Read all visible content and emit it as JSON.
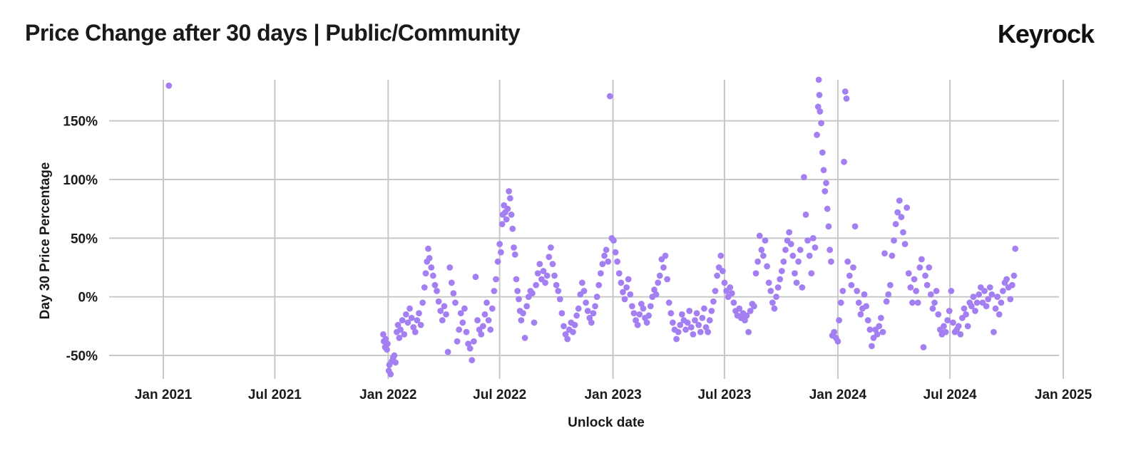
{
  "header": {
    "title": "Price Change after 30 days | Public/Community",
    "logo": "Keyrock"
  },
  "chart_data": {
    "type": "scatter",
    "title": "Price Change after 30 days | Public/Community",
    "xlabel": "Unlock date",
    "ylabel": "Day 30 Price Percentage",
    "point_color": "#a47ff2",
    "x_ticks": [
      "Jan 2021",
      "Jul 2021",
      "Jan 2022",
      "Jul 2022",
      "Jan 2023",
      "Jul 2023",
      "Jan 2024",
      "Jul 2024",
      "Jan 2025"
    ],
    "x_tick_dates": [
      "2021-01-01",
      "2021-07-01",
      "2022-01-01",
      "2022-07-01",
      "2023-01-01",
      "2023-07-01",
      "2024-01-01",
      "2024-07-01",
      "2025-01-01"
    ],
    "xlim": [
      "2020-10-05",
      "2024-12-25"
    ],
    "y_ticks": [
      -50,
      0,
      50,
      100,
      150
    ],
    "y_tick_labels": [
      "-50%",
      "0%",
      "50%",
      "100%",
      "150%"
    ],
    "ylim": [
      -70,
      185
    ],
    "grid": true,
    "points": [
      [
        "2021-01-10",
        180
      ],
      [
        "2021-12-24",
        -32
      ],
      [
        "2021-12-25",
        -38
      ],
      [
        "2021-12-27",
        -43
      ],
      [
        "2021-12-28",
        -36
      ],
      [
        "2021-12-30",
        -45
      ],
      [
        "2021-12-31",
        -40
      ],
      [
        "2022-01-02",
        -63
      ],
      [
        "2022-01-03",
        -58
      ],
      [
        "2022-01-05",
        -66
      ],
      [
        "2022-01-07",
        -55
      ],
      [
        "2022-01-09",
        -52
      ],
      [
        "2022-01-11",
        -50
      ],
      [
        "2022-01-13",
        -56
      ],
      [
        "2022-01-15",
        -30
      ],
      [
        "2022-01-17",
        -24
      ],
      [
        "2022-01-19",
        -35
      ],
      [
        "2022-01-21",
        -28
      ],
      [
        "2022-01-24",
        -20
      ],
      [
        "2022-01-27",
        -32
      ],
      [
        "2022-01-30",
        -15
      ],
      [
        "2022-02-02",
        -22
      ],
      [
        "2022-02-05",
        -10
      ],
      [
        "2022-02-08",
        -18
      ],
      [
        "2022-02-11",
        -26
      ],
      [
        "2022-02-14",
        -30
      ],
      [
        "2022-02-17",
        -20
      ],
      [
        "2022-02-20",
        -14
      ],
      [
        "2022-02-23",
        -24
      ],
      [
        "2022-02-26",
        -5
      ],
      [
        "2022-03-01",
        8
      ],
      [
        "2022-03-03",
        20
      ],
      [
        "2022-03-05",
        30
      ],
      [
        "2022-03-07",
        41
      ],
      [
        "2022-03-09",
        33
      ],
      [
        "2022-03-12",
        25
      ],
      [
        "2022-03-15",
        18
      ],
      [
        "2022-03-18",
        10
      ],
      [
        "2022-03-21",
        5
      ],
      [
        "2022-03-24",
        -4
      ],
      [
        "2022-03-27",
        -12
      ],
      [
        "2022-03-30",
        -20
      ],
      [
        "2022-04-02",
        -8
      ],
      [
        "2022-04-05",
        -15
      ],
      [
        "2022-04-08",
        -47
      ],
      [
        "2022-04-11",
        25
      ],
      [
        "2022-04-14",
        12
      ],
      [
        "2022-04-17",
        3
      ],
      [
        "2022-04-20",
        -5
      ],
      [
        "2022-04-23",
        -38
      ],
      [
        "2022-04-26",
        -28
      ],
      [
        "2022-04-29",
        -14
      ],
      [
        "2022-05-02",
        -22
      ],
      [
        "2022-05-05",
        -10
      ],
      [
        "2022-05-08",
        -30
      ],
      [
        "2022-05-11",
        -40
      ],
      [
        "2022-05-14",
        -44
      ],
      [
        "2022-05-17",
        -54
      ],
      [
        "2022-05-20",
        -38
      ],
      [
        "2022-05-23",
        17
      ],
      [
        "2022-05-26",
        -20
      ],
      [
        "2022-05-29",
        -28
      ],
      [
        "2022-06-01",
        -32
      ],
      [
        "2022-06-04",
        -25
      ],
      [
        "2022-06-07",
        -15
      ],
      [
        "2022-06-10",
        -5
      ],
      [
        "2022-06-13",
        -20
      ],
      [
        "2022-06-16",
        -28
      ],
      [
        "2022-06-19",
        -10
      ],
      [
        "2022-06-22",
        5
      ],
      [
        "2022-06-25",
        15
      ],
      [
        "2022-06-28",
        30
      ],
      [
        "2022-07-01",
        45
      ],
      [
        "2022-07-03",
        38
      ],
      [
        "2022-07-05",
        62
      ],
      [
        "2022-07-06",
        70
      ],
      [
        "2022-07-08",
        78
      ],
      [
        "2022-07-10",
        72
      ],
      [
        "2022-07-12",
        66
      ],
      [
        "2022-07-14",
        75
      ],
      [
        "2022-07-16",
        90
      ],
      [
        "2022-07-18",
        84
      ],
      [
        "2022-07-20",
        70
      ],
      [
        "2022-07-22",
        58
      ],
      [
        "2022-07-24",
        42
      ],
      [
        "2022-07-26",
        36
      ],
      [
        "2022-07-28",
        15
      ],
      [
        "2022-07-30",
        5
      ],
      [
        "2022-08-01",
        -2
      ],
      [
        "2022-08-03",
        -12
      ],
      [
        "2022-08-05",
        -20
      ],
      [
        "2022-08-08",
        -14
      ],
      [
        "2022-08-11",
        -35
      ],
      [
        "2022-08-14",
        -8
      ],
      [
        "2022-08-17",
        0
      ],
      [
        "2022-08-20",
        5
      ],
      [
        "2022-08-23",
        3
      ],
      [
        "2022-08-26",
        -22
      ],
      [
        "2022-08-29",
        10
      ],
      [
        "2022-09-01",
        20
      ],
      [
        "2022-09-04",
        28
      ],
      [
        "2022-09-07",
        15
      ],
      [
        "2022-09-10",
        22
      ],
      [
        "2022-09-13",
        12
      ],
      [
        "2022-09-16",
        18
      ],
      [
        "2022-09-19",
        34
      ],
      [
        "2022-09-22",
        42
      ],
      [
        "2022-09-25",
        28
      ],
      [
        "2022-09-28",
        18
      ],
      [
        "2022-10-01",
        10
      ],
      [
        "2022-10-04",
        5
      ],
      [
        "2022-10-07",
        -2
      ],
      [
        "2022-10-10",
        -14
      ],
      [
        "2022-10-13",
        -25
      ],
      [
        "2022-10-16",
        -32
      ],
      [
        "2022-10-19",
        -36
      ],
      [
        "2022-10-22",
        -28
      ],
      [
        "2022-10-25",
        -22
      ],
      [
        "2022-10-28",
        -30
      ],
      [
        "2022-10-31",
        -24
      ],
      [
        "2022-11-03",
        -16
      ],
      [
        "2022-11-06",
        -10
      ],
      [
        "2022-11-09",
        2
      ],
      [
        "2022-11-12",
        12
      ],
      [
        "2022-11-15",
        5
      ],
      [
        "2022-11-18",
        -5
      ],
      [
        "2022-11-21",
        -12
      ],
      [
        "2022-11-24",
        -18
      ],
      [
        "2022-11-27",
        -22
      ],
      [
        "2022-11-30",
        -14
      ],
      [
        "2022-12-03",
        -8
      ],
      [
        "2022-12-06",
        0
      ],
      [
        "2022-12-09",
        10
      ],
      [
        "2022-12-12",
        20
      ],
      [
        "2022-12-15",
        28
      ],
      [
        "2022-12-18",
        35
      ],
      [
        "2022-12-21",
        40
      ],
      [
        "2022-12-24",
        30
      ],
      [
        "2022-12-27",
        171
      ],
      [
        "2022-12-30",
        50
      ],
      [
        "2023-01-02",
        48
      ],
      [
        "2023-01-05",
        38
      ],
      [
        "2023-01-08",
        30
      ],
      [
        "2023-01-11",
        20
      ],
      [
        "2023-01-14",
        12
      ],
      [
        "2023-01-17",
        4
      ],
      [
        "2023-01-20",
        -2
      ],
      [
        "2023-01-23",
        8
      ],
      [
        "2023-01-26",
        15
      ],
      [
        "2023-01-29",
        2
      ],
      [
        "2023-02-01",
        -8
      ],
      [
        "2023-02-04",
        -14
      ],
      [
        "2023-02-07",
        -20
      ],
      [
        "2023-02-10",
        -24
      ],
      [
        "2023-02-13",
        -15
      ],
      [
        "2023-02-16",
        -6
      ],
      [
        "2023-02-19",
        -10
      ],
      [
        "2023-02-22",
        -18
      ],
      [
        "2023-02-25",
        -22
      ],
      [
        "2023-02-28",
        -16
      ],
      [
        "2023-03-03",
        -8
      ],
      [
        "2023-03-06",
        0
      ],
      [
        "2023-03-09",
        6
      ],
      [
        "2023-03-12",
        2
      ],
      [
        "2023-03-15",
        12
      ],
      [
        "2023-03-18",
        18
      ],
      [
        "2023-03-21",
        32
      ],
      [
        "2023-03-24",
        25
      ],
      [
        "2023-03-27",
        35
      ],
      [
        "2023-03-30",
        15
      ],
      [
        "2023-04-02",
        -5
      ],
      [
        "2023-04-05",
        -14
      ],
      [
        "2023-04-08",
        -22
      ],
      [
        "2023-04-11",
        -28
      ],
      [
        "2023-04-14",
        -36
      ],
      [
        "2023-04-17",
        -30
      ],
      [
        "2023-04-20",
        -24
      ],
      [
        "2023-04-23",
        -15
      ],
      [
        "2023-04-26",
        -20
      ],
      [
        "2023-04-29",
        -28
      ],
      [
        "2023-05-02",
        -22
      ],
      [
        "2023-05-05",
        -12
      ],
      [
        "2023-05-08",
        -26
      ],
      [
        "2023-05-11",
        -32
      ],
      [
        "2023-05-14",
        -20
      ],
      [
        "2023-05-17",
        -14
      ],
      [
        "2023-05-20",
        -24
      ],
      [
        "2023-05-23",
        -30
      ],
      [
        "2023-05-26",
        -18
      ],
      [
        "2023-05-29",
        -10
      ],
      [
        "2023-06-01",
        -26
      ],
      [
        "2023-06-04",
        -30
      ],
      [
        "2023-06-07",
        -20
      ],
      [
        "2023-06-10",
        -12
      ],
      [
        "2023-06-13",
        -4
      ],
      [
        "2023-06-16",
        5
      ],
      [
        "2023-06-19",
        18
      ],
      [
        "2023-06-22",
        25
      ],
      [
        "2023-06-25",
        35
      ],
      [
        "2023-06-28",
        22
      ],
      [
        "2023-07-01",
        12
      ],
      [
        "2023-07-04",
        5
      ],
      [
        "2023-07-07",
        0
      ],
      [
        "2023-07-10",
        8
      ],
      [
        "2023-07-13",
        3
      ],
      [
        "2023-07-16",
        -5
      ],
      [
        "2023-07-19",
        -12
      ],
      [
        "2023-07-22",
        -16
      ],
      [
        "2023-07-25",
        -10
      ],
      [
        "2023-07-28",
        -18
      ],
      [
        "2023-07-31",
        -14
      ],
      [
        "2023-08-03",
        -20
      ],
      [
        "2023-08-06",
        -16
      ],
      [
        "2023-08-09",
        -30
      ],
      [
        "2023-08-12",
        -12
      ],
      [
        "2023-08-15",
        -6
      ],
      [
        "2023-08-18",
        -8
      ],
      [
        "2023-08-21",
        20
      ],
      [
        "2023-08-24",
        30
      ],
      [
        "2023-08-27",
        52
      ],
      [
        "2023-08-30",
        40
      ],
      [
        "2023-09-02",
        35
      ],
      [
        "2023-09-05",
        48
      ],
      [
        "2023-09-08",
        26
      ],
      [
        "2023-09-11",
        12
      ],
      [
        "2023-09-14",
        5
      ],
      [
        "2023-09-17",
        -5
      ],
      [
        "2023-09-20",
        -10
      ],
      [
        "2023-09-23",
        0
      ],
      [
        "2023-09-26",
        8
      ],
      [
        "2023-09-29",
        15
      ],
      [
        "2023-10-02",
        22
      ],
      [
        "2023-10-05",
        30
      ],
      [
        "2023-10-08",
        40
      ],
      [
        "2023-10-11",
        48
      ],
      [
        "2023-10-14",
        55
      ],
      [
        "2023-10-17",
        45
      ],
      [
        "2023-10-20",
        35
      ],
      [
        "2023-10-23",
        20
      ],
      [
        "2023-10-26",
        12
      ],
      [
        "2023-10-29",
        30
      ],
      [
        "2023-11-01",
        40
      ],
      [
        "2023-11-04",
        8
      ],
      [
        "2023-11-07",
        102
      ],
      [
        "2023-11-10",
        70
      ],
      [
        "2023-11-13",
        48
      ],
      [
        "2023-11-16",
        35
      ],
      [
        "2023-11-19",
        20
      ],
      [
        "2023-11-22",
        50
      ],
      [
        "2023-11-25",
        42
      ],
      [
        "2023-11-28",
        138
      ],
      [
        "2023-11-30",
        162
      ],
      [
        "2023-12-01",
        185
      ],
      [
        "2023-12-02",
        172
      ],
      [
        "2023-12-03",
        158
      ],
      [
        "2023-12-05",
        148
      ],
      [
        "2023-12-07",
        123
      ],
      [
        "2023-12-09",
        108
      ],
      [
        "2023-12-11",
        90
      ],
      [
        "2023-12-13",
        97
      ],
      [
        "2023-12-15",
        75
      ],
      [
        "2023-12-17",
        60
      ],
      [
        "2023-12-19",
        40
      ],
      [
        "2023-12-21",
        30
      ],
      [
        "2023-12-23",
        -33
      ],
      [
        "2023-12-26",
        -30
      ],
      [
        "2023-12-29",
        -35
      ],
      [
        "2024-01-01",
        -38
      ],
      [
        "2024-01-03",
        -20
      ],
      [
        "2024-01-06",
        -5
      ],
      [
        "2024-01-09",
        5
      ],
      [
        "2024-01-11",
        115
      ],
      [
        "2024-01-13",
        175
      ],
      [
        "2024-01-15",
        169
      ],
      [
        "2024-01-17",
        30
      ],
      [
        "2024-01-20",
        18
      ],
      [
        "2024-01-23",
        10
      ],
      [
        "2024-01-26",
        25
      ],
      [
        "2024-01-29",
        60
      ],
      [
        "2024-02-01",
        5
      ],
      [
        "2024-02-04",
        -5
      ],
      [
        "2024-02-07",
        -15
      ],
      [
        "2024-02-10",
        -10
      ],
      [
        "2024-02-13",
        2
      ],
      [
        "2024-02-16",
        -8
      ],
      [
        "2024-02-19",
        -20
      ],
      [
        "2024-02-22",
        -28
      ],
      [
        "2024-02-25",
        -42
      ],
      [
        "2024-02-28",
        -35
      ],
      [
        "2024-03-02",
        -28
      ],
      [
        "2024-03-05",
        -32
      ],
      [
        "2024-03-08",
        -25
      ],
      [
        "2024-03-11",
        -18
      ],
      [
        "2024-03-14",
        -30
      ],
      [
        "2024-03-17",
        37
      ],
      [
        "2024-03-20",
        -4
      ],
      [
        "2024-03-23",
        2
      ],
      [
        "2024-03-26",
        10
      ],
      [
        "2024-03-29",
        35
      ],
      [
        "2024-04-01",
        48
      ],
      [
        "2024-04-04",
        62
      ],
      [
        "2024-04-07",
        72
      ],
      [
        "2024-04-10",
        82
      ],
      [
        "2024-04-13",
        68
      ],
      [
        "2024-04-16",
        55
      ],
      [
        "2024-04-19",
        45
      ],
      [
        "2024-04-22",
        76
      ],
      [
        "2024-04-25",
        20
      ],
      [
        "2024-04-28",
        8
      ],
      [
        "2024-05-01",
        -5
      ],
      [
        "2024-05-04",
        15
      ],
      [
        "2024-05-07",
        5
      ],
      [
        "2024-05-10",
        -5
      ],
      [
        "2024-05-13",
        25
      ],
      [
        "2024-05-16",
        32
      ],
      [
        "2024-05-19",
        -43
      ],
      [
        "2024-05-22",
        18
      ],
      [
        "2024-05-25",
        10
      ],
      [
        "2024-05-28",
        25
      ],
      [
        "2024-05-31",
        2
      ],
      [
        "2024-06-03",
        -10
      ],
      [
        "2024-06-06",
        -5
      ],
      [
        "2024-06-09",
        5
      ],
      [
        "2024-06-12",
        -15
      ],
      [
        "2024-06-15",
        -28
      ],
      [
        "2024-06-18",
        -32
      ],
      [
        "2024-06-21",
        -25
      ],
      [
        "2024-06-24",
        -30
      ],
      [
        "2024-06-27",
        -20
      ],
      [
        "2024-06-30",
        -12
      ],
      [
        "2024-07-03",
        5
      ],
      [
        "2024-07-06",
        -22
      ],
      [
        "2024-07-09",
        -30
      ],
      [
        "2024-07-12",
        -28
      ],
      [
        "2024-07-15",
        -25
      ],
      [
        "2024-07-18",
        -32
      ],
      [
        "2024-07-21",
        -18
      ],
      [
        "2024-07-24",
        -10
      ],
      [
        "2024-07-27",
        -15
      ],
      [
        "2024-07-30",
        -25
      ],
      [
        "2024-08-02",
        -5
      ],
      [
        "2024-08-05",
        -8
      ],
      [
        "2024-08-08",
        0
      ],
      [
        "2024-08-11",
        -12
      ],
      [
        "2024-08-14",
        -5
      ],
      [
        "2024-08-17",
        2
      ],
      [
        "2024-08-20",
        8
      ],
      [
        "2024-08-23",
        -5
      ],
      [
        "2024-08-26",
        5
      ],
      [
        "2024-08-29",
        -8
      ],
      [
        "2024-09-01",
        -2
      ],
      [
        "2024-09-04",
        8
      ],
      [
        "2024-09-07",
        2
      ],
      [
        "2024-09-10",
        -30
      ],
      [
        "2024-09-13",
        -10
      ],
      [
        "2024-09-16",
        0
      ],
      [
        "2024-09-19",
        -15
      ],
      [
        "2024-09-22",
        -5
      ],
      [
        "2024-09-25",
        5
      ],
      [
        "2024-09-28",
        12
      ],
      [
        "2024-10-01",
        15
      ],
      [
        "2024-10-04",
        8
      ],
      [
        "2024-10-07",
        -2
      ],
      [
        "2024-10-10",
        10
      ],
      [
        "2024-10-13",
        18
      ],
      [
        "2024-10-15",
        41
      ]
    ]
  }
}
